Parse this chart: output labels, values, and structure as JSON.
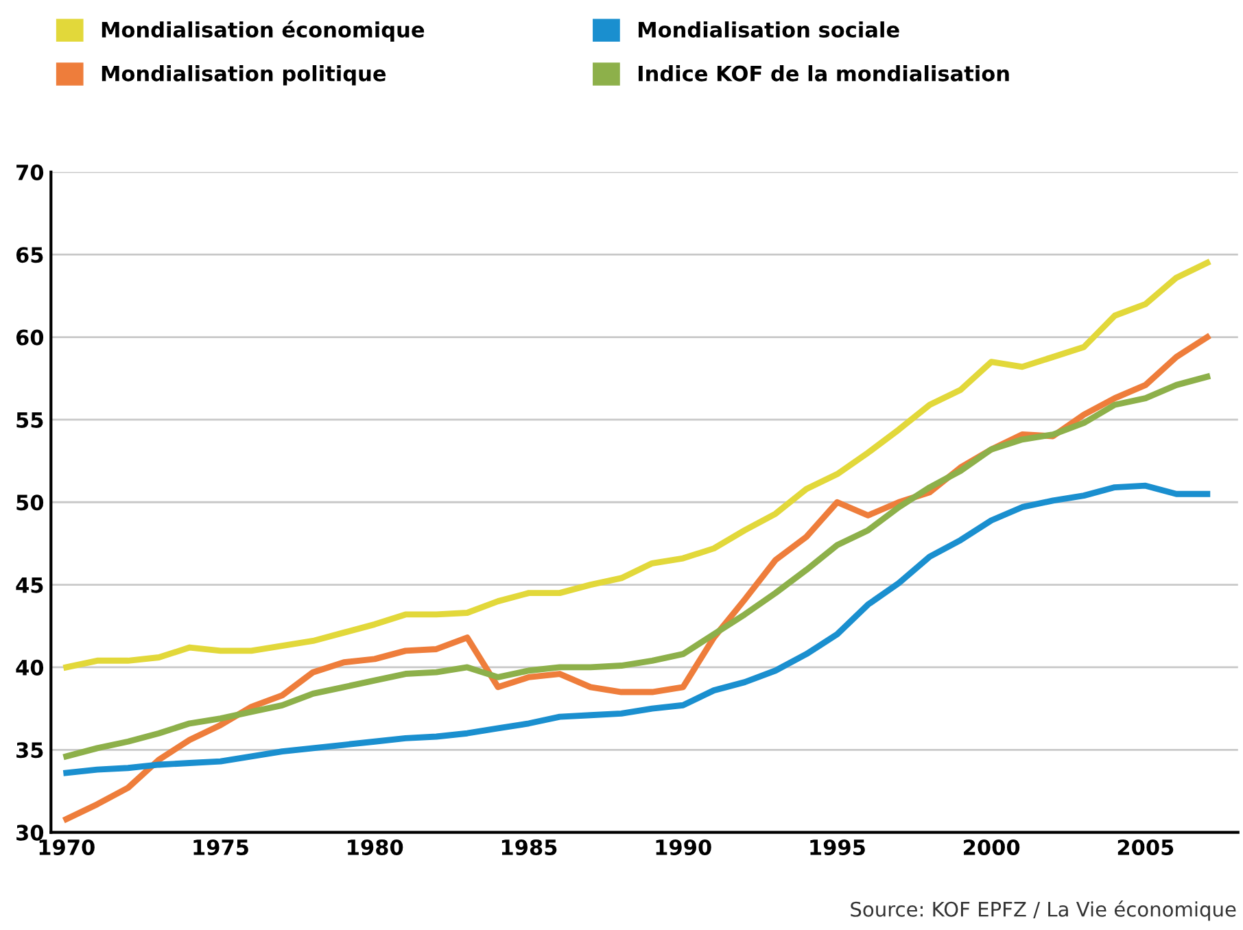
{
  "chart_data": {
    "type": "line",
    "x": [
      1970,
      1971,
      1972,
      1973,
      1974,
      1975,
      1976,
      1977,
      1978,
      1979,
      1980,
      1981,
      1982,
      1983,
      1984,
      1985,
      1986,
      1987,
      1988,
      1989,
      1990,
      1991,
      1992,
      1993,
      1994,
      1995,
      1996,
      1997,
      1998,
      1999,
      2000,
      2001,
      2002,
      2003,
      2004,
      2005,
      2006,
      2007
    ],
    "series": [
      {
        "name": "Mondialisation économique",
        "color": "#e2d83a",
        "values": [
          40.0,
          40.4,
          40.4,
          40.6,
          41.2,
          41.0,
          41.0,
          41.3,
          41.6,
          42.1,
          42.6,
          43.2,
          43.2,
          43.3,
          44.0,
          44.5,
          44.5,
          45.0,
          45.4,
          46.3,
          46.6,
          47.2,
          48.3,
          49.3,
          50.8,
          51.7,
          53.0,
          54.4,
          55.9,
          56.8,
          58.5,
          58.2,
          58.8,
          59.4,
          61.3,
          62.0,
          63.6,
          64.5
        ]
      },
      {
        "name": "Mondialisation politique",
        "color": "#ee7d3b",
        "values": [
          30.8,
          31.7,
          32.7,
          34.4,
          35.6,
          36.5,
          37.6,
          38.3,
          39.7,
          40.3,
          40.5,
          41.0,
          41.1,
          41.8,
          38.8,
          39.4,
          39.6,
          38.8,
          38.5,
          38.5,
          38.8,
          41.8,
          44.1,
          46.5,
          47.9,
          50.0,
          49.2,
          50.0,
          50.6,
          52.1,
          53.2,
          54.1,
          54.0,
          55.3,
          56.3,
          57.1,
          58.8,
          60.0
        ]
      },
      {
        "name": "Mondialisation sociale",
        "color": "#1a8fcf",
        "values": [
          33.6,
          33.8,
          33.9,
          34.1,
          34.2,
          34.3,
          34.6,
          34.9,
          35.1,
          35.3,
          35.5,
          35.7,
          35.8,
          36.0,
          36.3,
          36.6,
          37.0,
          37.1,
          37.2,
          37.5,
          37.7,
          38.6,
          39.1,
          39.8,
          40.8,
          42.0,
          43.8,
          45.1,
          46.7,
          47.7,
          48.9,
          49.7,
          50.1,
          50.4,
          50.9,
          51.0,
          50.5,
          50.5
        ]
      },
      {
        "name": "Indice KOF de la mondialisation",
        "color": "#8db04a",
        "values": [
          34.6,
          35.1,
          35.5,
          36.0,
          36.6,
          36.9,
          37.3,
          37.7,
          38.4,
          38.8,
          39.2,
          39.6,
          39.7,
          40.0,
          39.4,
          39.8,
          40.0,
          40.0,
          40.1,
          40.4,
          40.8,
          42.0,
          43.2,
          44.5,
          45.9,
          47.4,
          48.3,
          49.7,
          50.9,
          51.9,
          53.2,
          53.8,
          54.1,
          54.8,
          55.9,
          56.3,
          57.1,
          57.6
        ]
      }
    ],
    "xlim": [
      1969.5,
      2008
    ],
    "xticks": [
      1970,
      1975,
      1980,
      1985,
      1990,
      1995,
      2000,
      2005
    ],
    "ylim": [
      30,
      70
    ],
    "yticks": [
      30,
      35,
      40,
      45,
      50,
      55,
      60,
      65,
      70
    ],
    "grid": "y",
    "legend": "top",
    "marker": "none",
    "line_style": "solid",
    "annotations": [
      "Source: KOF EPFZ / La Vie économique"
    ]
  }
}
